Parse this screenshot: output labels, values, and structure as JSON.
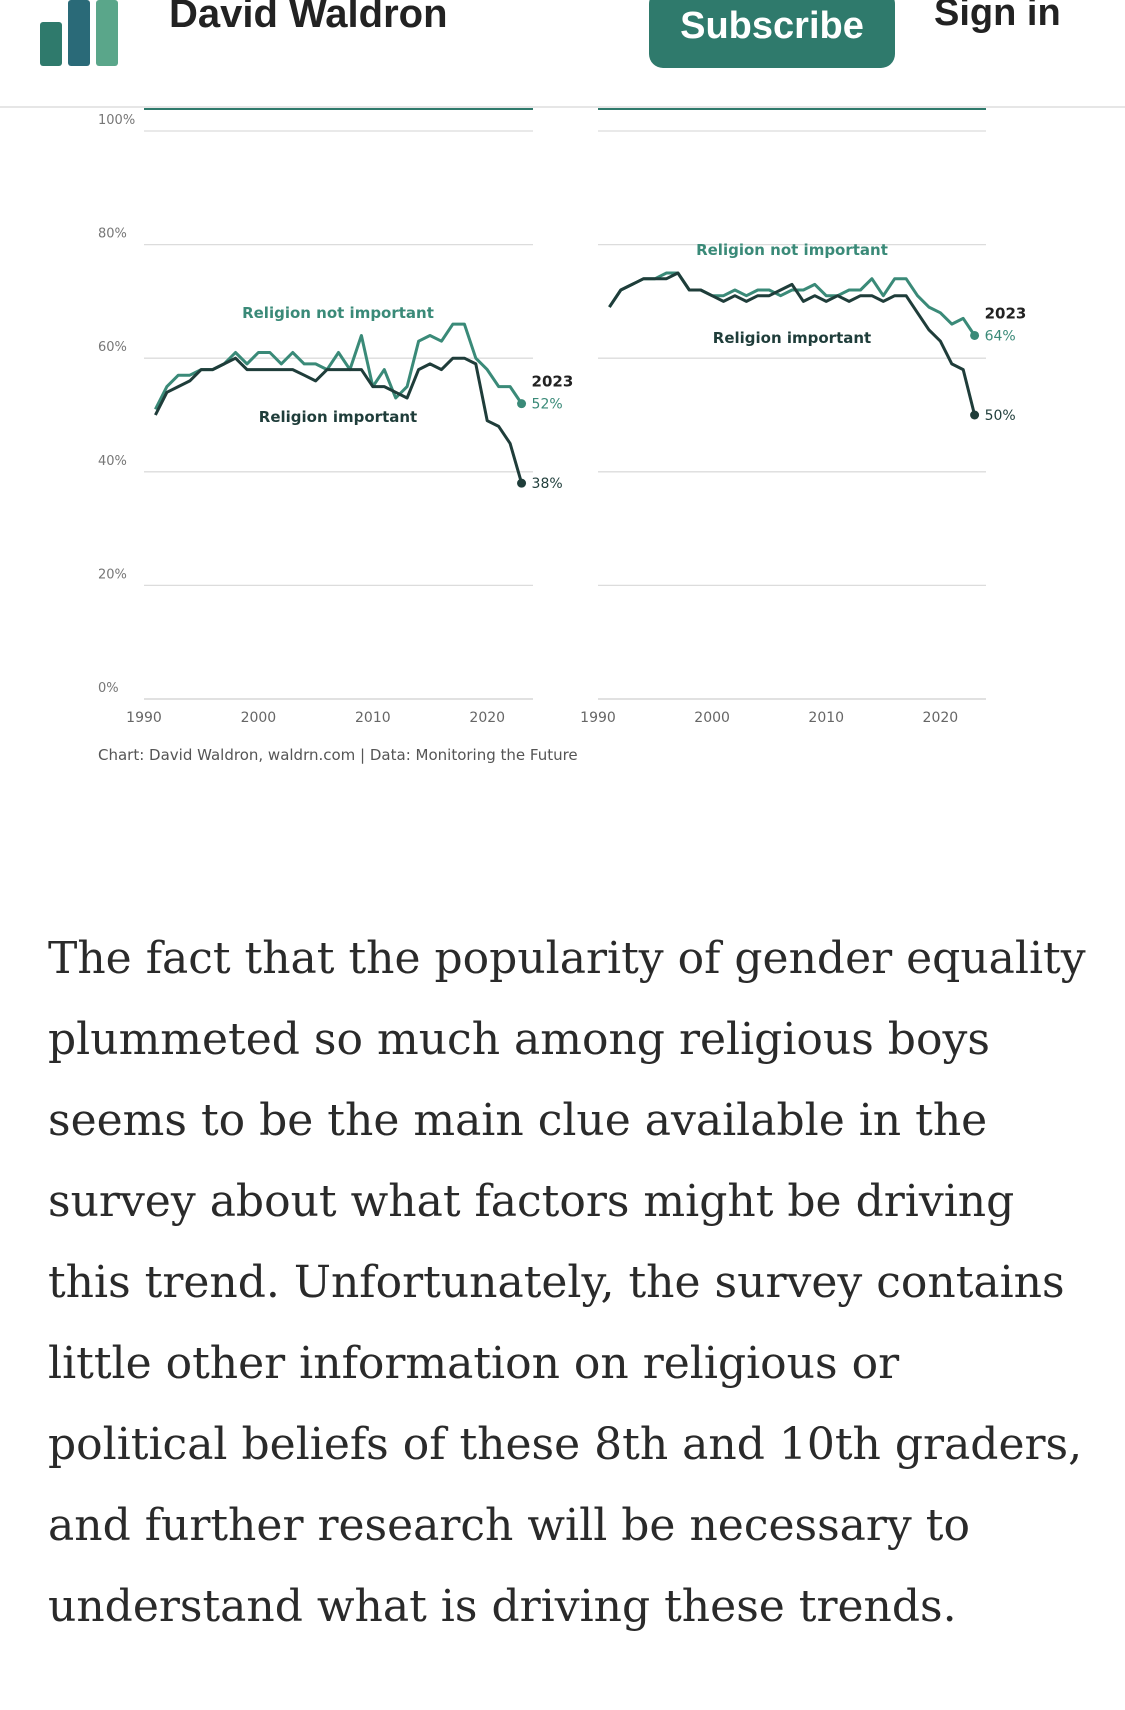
{
  "header": {
    "site_title": "David Waldron",
    "subscribe_label": "Subscribe",
    "signin_label": "Sign in",
    "logo_icon": "bar-chart-logo-icon",
    "accent_color": "#2f7a6c"
  },
  "chart_data": [
    {
      "type": "line",
      "title": "",
      "xlim": [
        1990,
        2024
      ],
      "ylim": [
        0,
        100
      ],
      "x_ticks": [
        "1990",
        "2000",
        "2010",
        "2020"
      ],
      "y_ticks": [
        "0%",
        "20%",
        "40%",
        "60%",
        "80%",
        "100%"
      ],
      "grid": true,
      "series": [
        {
          "name": "Religion not important",
          "color": "#3a8a78",
          "x": [
            1991,
            1992,
            1993,
            1994,
            1995,
            1996,
            1997,
            1998,
            1999,
            2000,
            2001,
            2002,
            2003,
            2004,
            2005,
            2006,
            2007,
            2008,
            2009,
            2010,
            2011,
            2012,
            2013,
            2014,
            2015,
            2016,
            2017,
            2018,
            2019,
            2020,
            2021,
            2022,
            2023
          ],
          "values": [
            51,
            55,
            57,
            57,
            58,
            58,
            59,
            61,
            59,
            61,
            61,
            59,
            61,
            59,
            59,
            58,
            61,
            58,
            64,
            55,
            58,
            53,
            55,
            63,
            64,
            63,
            66,
            66,
            60,
            58,
            55,
            55,
            52
          ]
        },
        {
          "name": "Religion important",
          "color": "#1f3d3a",
          "x": [
            1991,
            1992,
            1993,
            1994,
            1995,
            1996,
            1997,
            1998,
            1999,
            2000,
            2001,
            2002,
            2003,
            2004,
            2005,
            2006,
            2007,
            2008,
            2009,
            2010,
            2011,
            2012,
            2013,
            2014,
            2015,
            2016,
            2017,
            2018,
            2019,
            2020,
            2021,
            2022,
            2023
          ],
          "values": [
            50,
            54,
            55,
            56,
            58,
            58,
            59,
            60,
            58,
            58,
            58,
            58,
            58,
            57,
            56,
            58,
            58,
            58,
            58,
            55,
            55,
            54,
            53,
            58,
            59,
            58,
            60,
            60,
            59,
            49,
            48,
            45,
            38
          ]
        }
      ],
      "end_year_label": "2023",
      "end_labels": [
        "52%",
        "38%"
      ]
    },
    {
      "type": "line",
      "title": "",
      "xlim": [
        1990,
        2024
      ],
      "ylim": [
        0,
        100
      ],
      "x_ticks": [
        "1990",
        "2000",
        "2010",
        "2020"
      ],
      "grid": true,
      "series": [
        {
          "name": "Religion not important",
          "color": "#3a8a78",
          "x": [
            1991,
            1992,
            1993,
            1994,
            1995,
            1996,
            1997,
            1998,
            1999,
            2000,
            2001,
            2002,
            2003,
            2004,
            2005,
            2006,
            2007,
            2008,
            2009,
            2010,
            2011,
            2012,
            2013,
            2014,
            2015,
            2016,
            2017,
            2018,
            2019,
            2020,
            2021,
            2022,
            2023
          ],
          "values": [
            69,
            72,
            73,
            74,
            74,
            75,
            75,
            72,
            72,
            71,
            71,
            72,
            71,
            72,
            72,
            71,
            72,
            72,
            73,
            71,
            71,
            72,
            72,
            74,
            71,
            74,
            74,
            71,
            69,
            68,
            66,
            67,
            64
          ]
        },
        {
          "name": "Religion important",
          "color": "#1f3d3a",
          "x": [
            1991,
            1992,
            1993,
            1994,
            1995,
            1996,
            1997,
            1998,
            1999,
            2000,
            2001,
            2002,
            2003,
            2004,
            2005,
            2006,
            2007,
            2008,
            2009,
            2010,
            2011,
            2012,
            2013,
            2014,
            2015,
            2016,
            2017,
            2018,
            2019,
            2020,
            2021,
            2022,
            2023
          ],
          "values": [
            69,
            72,
            73,
            74,
            74,
            74,
            75,
            72,
            72,
            71,
            70,
            71,
            70,
            71,
            71,
            72,
            73,
            70,
            71,
            70,
            71,
            70,
            71,
            71,
            70,
            71,
            71,
            68,
            65,
            63,
            59,
            58,
            50
          ]
        }
      ],
      "end_year_label": "2023",
      "end_labels": [
        "64%",
        "50%"
      ]
    }
  ],
  "credit": "Chart: David Waldron, waldrn.com | Data: Monitoring the Future",
  "article": {
    "paragraph": "The fact that the popularity of gender equality plummeted so much among religious boys seems to be the main clue available in the survey about what factors might be driving this trend. Unfortunately, the survey contains little other information on religious or political beliefs of these 8th and 10th graders, and further research will be necessary to understand what is driving these trends."
  }
}
